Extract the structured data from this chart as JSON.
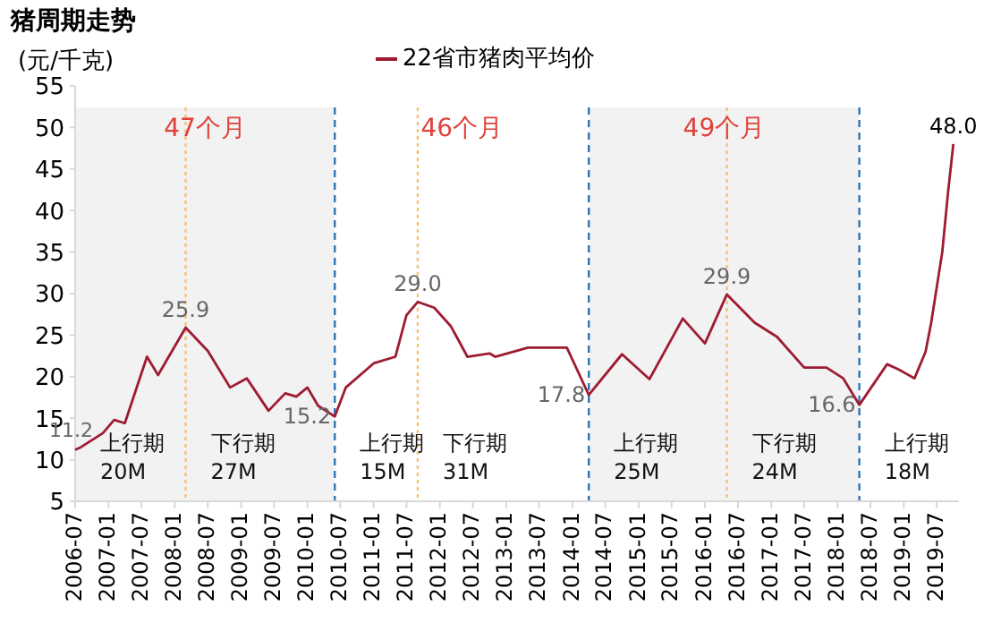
{
  "chart_data": {
    "type": "line",
    "title": "猪周期走势",
    "ylabel": "(元/千克)",
    "legend": "top",
    "x": [
      "2006-07",
      "2006-08",
      "2006-12",
      "2007-02",
      "2007-04",
      "2007-08",
      "2007-10",
      "2008-03",
      "2008-07",
      "2008-11",
      "2009-02",
      "2009-06",
      "2009-09",
      "2009-11",
      "2010-01",
      "2010-03",
      "2010-06",
      "2010-08",
      "2011-01",
      "2011-05",
      "2011-07",
      "2011-09",
      "2011-12",
      "2012-03",
      "2012-06",
      "2012-10",
      "2012-11",
      "2013-05",
      "2013-12",
      "2014-04",
      "2014-10",
      "2015-03",
      "2015-09",
      "2016-01",
      "2016-05",
      "2016-10",
      "2017-02",
      "2017-07",
      "2017-11",
      "2018-02",
      "2018-05",
      "2018-10",
      "2018-12",
      "2019-03",
      "2019-05",
      "2019-06",
      "2019-08",
      "2019-09",
      "2019-10"
    ],
    "series": [
      {
        "name": "22省市猪肉平均价",
        "color": "#9e1b32",
        "values": [
          11.2,
          11.5,
          13.2,
          14.8,
          14.4,
          22.4,
          20.2,
          25.9,
          23.1,
          18.7,
          19.8,
          15.9,
          18.0,
          17.6,
          18.7,
          16.5,
          15.2,
          18.7,
          21.6,
          22.4,
          27.4,
          29.0,
          28.3,
          26.1,
          22.4,
          22.8,
          22.4,
          23.5,
          23.5,
          17.8,
          22.7,
          19.7,
          27.0,
          24.0,
          29.9,
          26.5,
          24.8,
          21.1,
          21.1,
          19.8,
          16.6,
          21.5,
          20.9,
          19.8,
          23.0,
          26.5,
          35.0,
          42.0,
          48.0
        ]
      }
    ],
    "xlim": [
      "2006-07",
      "2019-11"
    ],
    "xticks": [
      {
        "value": "2006-07",
        "label": "2006-07"
      },
      {
        "value": "2007-01",
        "label": "2007-01"
      },
      {
        "value": "2007-07",
        "label": "2007-07"
      },
      {
        "value": "2008-01",
        "label": "2008-01"
      },
      {
        "value": "2008-07",
        "label": "2008-07"
      },
      {
        "value": "2009-01",
        "label": "2009-01"
      },
      {
        "value": "2009-07",
        "label": "2009-07"
      },
      {
        "value": "2010-01",
        "label": "2010-01"
      },
      {
        "value": "2010-07",
        "label": "2010-07"
      },
      {
        "value": "2011-01",
        "label": "2011-01"
      },
      {
        "value": "2011-07",
        "label": "2011-07"
      },
      {
        "value": "2012-01",
        "label": "2012-01"
      },
      {
        "value": "2012-07",
        "label": "2012-07"
      },
      {
        "value": "2013-01",
        "label": "2013-01"
      },
      {
        "value": "2013-07",
        "label": "2013-07"
      },
      {
        "value": "2014-01",
        "label": "2014-01"
      },
      {
        "value": "2014-07",
        "label": "2014-07"
      },
      {
        "value": "2015-01",
        "label": "2015-01"
      },
      {
        "value": "2015-07",
        "label": "2015-07"
      },
      {
        "value": "2016-01",
        "label": "2016-01"
      },
      {
        "value": "2016-07",
        "label": "2016-07"
      },
      {
        "value": "2017-01",
        "label": "2017-01"
      },
      {
        "value": "2017-07",
        "label": "2017-07"
      },
      {
        "value": "2018-01",
        "label": "2018-01"
      },
      {
        "value": "2018-07",
        "label": "2018-07"
      },
      {
        "value": "2019-01",
        "label": "2019-01"
      },
      {
        "value": "2019-07",
        "label": "2019-07"
      }
    ],
    "ylim": [
      5,
      55
    ],
    "yticks": [
      5,
      10,
      15,
      20,
      25,
      30,
      35,
      40,
      45,
      50,
      55
    ],
    "bands": [
      {
        "axis": "x",
        "from": "2006-07",
        "to": "2010-06",
        "color": "#f2f2f2"
      },
      {
        "axis": "x",
        "from": "2014-04",
        "to": "2018-05",
        "color": "#f2f2f2"
      }
    ],
    "ref_lines": [
      {
        "axis": "x",
        "value": "2010-06",
        "color": "#2e75b6",
        "line_style": "dashed"
      },
      {
        "axis": "x",
        "value": "2014-04",
        "color": "#2e75b6",
        "line_style": "dashed"
      },
      {
        "axis": "x",
        "value": "2018-05",
        "color": "#2e75b6",
        "line_style": "dashed"
      },
      {
        "axis": "x",
        "value": "2008-03",
        "color": "#f4c27a",
        "line_style": "dotted"
      },
      {
        "axis": "x",
        "value": "2011-09",
        "color": "#f4c27a",
        "line_style": "dotted"
      },
      {
        "axis": "x",
        "value": "2016-05",
        "color": "#f4c27a",
        "line_style": "dotted"
      }
    ],
    "annotations": [
      "47个月",
      "46个月",
      "49个月",
      {
        "text": "11.2",
        "x": "2006-07",
        "y": 11.2
      },
      {
        "text": "25.9",
        "x": "2008-03",
        "y": 25.9
      },
      {
        "text": "15.2",
        "x": "2010-06",
        "y": 15.2
      },
      {
        "text": "29.0",
        "x": "2011-09",
        "y": 29.0
      },
      {
        "text": "17.8",
        "x": "2014-04",
        "y": 17.8
      },
      {
        "text": "29.9",
        "x": "2016-05",
        "y": 29.9
      },
      {
        "text": "16.6",
        "x": "2018-05",
        "y": 16.6
      },
      {
        "text": "48.0",
        "x": "2019-10",
        "y": 48.0
      },
      "上行期",
      "20M",
      "下行期",
      "27M",
      "上行期",
      "15M",
      "下行期",
      "31M",
      "上行期",
      "25M",
      "下行期",
      "24M",
      "上行期",
      "18M"
    ]
  }
}
